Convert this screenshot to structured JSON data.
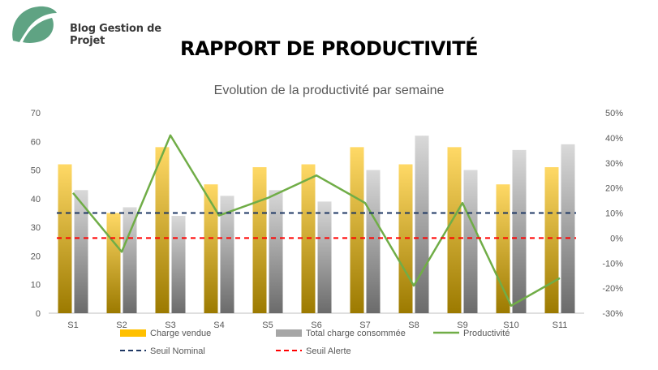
{
  "brand": {
    "name": "Blog Gestion de Projet",
    "logo_icon": "leaf-logo-icon"
  },
  "report_title": "RAPPORT DE PRODUCTIVITÉ",
  "chart_data": {
    "type": "bar",
    "title": "Evolution de la productivité par semaine",
    "categories": [
      "S1",
      "S2",
      "S3",
      "S4",
      "S5",
      "S6",
      "S7",
      "S8",
      "S9",
      "S10",
      "S11"
    ],
    "series": [
      {
        "name": "Charge vendue",
        "type": "bar",
        "axis": "left",
        "color": "#FFC000",
        "values": [
          52,
          35,
          58,
          45,
          51,
          52,
          58,
          52,
          58,
          45,
          51
        ]
      },
      {
        "name": "Total charge consommée",
        "type": "bar",
        "axis": "left",
        "color": "#A6A6A6",
        "values": [
          43,
          37,
          34,
          41,
          43,
          39,
          50,
          62,
          50,
          57,
          59
        ]
      },
      {
        "name": "Productivité",
        "type": "line",
        "axis": "right",
        "color": "#70AD47",
        "values": [
          0.18,
          -0.055,
          0.41,
          0.09,
          0.16,
          0.25,
          0.14,
          -0.19,
          0.14,
          -0.27,
          -0.16
        ]
      },
      {
        "name": "Seuil Nominal",
        "type": "line",
        "axis": "right",
        "color": "#1F3864",
        "dash": true,
        "values": [
          0.1,
          0.1,
          0.1,
          0.1,
          0.1,
          0.1,
          0.1,
          0.1,
          0.1,
          0.1,
          0.1
        ]
      },
      {
        "name": "Seuil Alerte",
        "type": "line",
        "axis": "right",
        "color": "#FF0000",
        "dash": true,
        "values": [
          0,
          0,
          0,
          0,
          0,
          0,
          0,
          0,
          0,
          0,
          0
        ]
      }
    ],
    "ylim": [
      0,
      70
    ],
    "yticks": [
      "0",
      "10",
      "20",
      "30",
      "40",
      "50",
      "60",
      "70"
    ],
    "y2lim": [
      -0.3,
      0.5
    ],
    "y2ticks": [
      "-30%",
      "-20%",
      "-10%",
      "0%",
      "10%",
      "20%",
      "30%",
      "40%",
      "50%"
    ],
    "grid": false,
    "legend_position": "bottom"
  }
}
